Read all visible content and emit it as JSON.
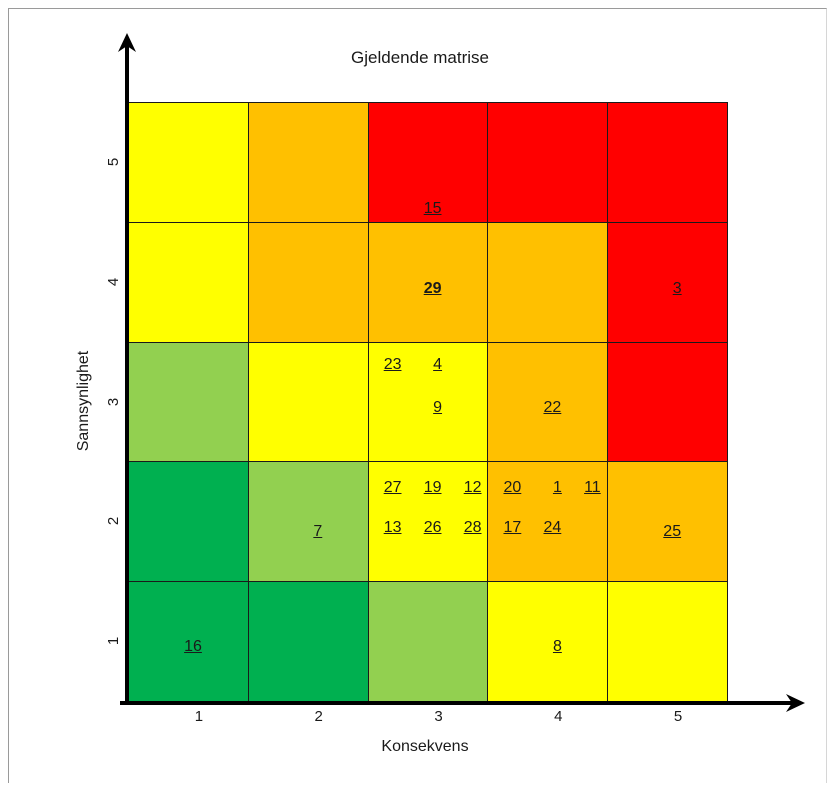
{
  "title": "Gjeldende matrise",
  "x_axis": {
    "label": "Konsekvens",
    "ticks": [
      "1",
      "2",
      "3",
      "4",
      "5"
    ]
  },
  "y_axis": {
    "label": "Sannsynlighet",
    "ticks": [
      "1",
      "2",
      "3",
      "4",
      "5"
    ]
  },
  "colors": {
    "dark_green": "#00b050",
    "light_green": "#92d050",
    "yellow": "#ffff00",
    "orange": "#ffc000",
    "red": "#ff0000"
  },
  "cells": [
    {
      "likelihood": 5,
      "consequence": 1,
      "color": "yellow"
    },
    {
      "likelihood": 5,
      "consequence": 2,
      "color": "orange"
    },
    {
      "likelihood": 5,
      "consequence": 3,
      "color": "red"
    },
    {
      "likelihood": 5,
      "consequence": 4,
      "color": "red"
    },
    {
      "likelihood": 5,
      "consequence": 5,
      "color": "red"
    },
    {
      "likelihood": 4,
      "consequence": 1,
      "color": "yellow"
    },
    {
      "likelihood": 4,
      "consequence": 2,
      "color": "orange"
    },
    {
      "likelihood": 4,
      "consequence": 3,
      "color": "orange"
    },
    {
      "likelihood": 4,
      "consequence": 4,
      "color": "orange"
    },
    {
      "likelihood": 4,
      "consequence": 5,
      "color": "red"
    },
    {
      "likelihood": 3,
      "consequence": 1,
      "color": "light_green"
    },
    {
      "likelihood": 3,
      "consequence": 2,
      "color": "yellow"
    },
    {
      "likelihood": 3,
      "consequence": 3,
      "color": "yellow"
    },
    {
      "likelihood": 3,
      "consequence": 4,
      "color": "orange"
    },
    {
      "likelihood": 3,
      "consequence": 5,
      "color": "red"
    },
    {
      "likelihood": 2,
      "consequence": 1,
      "color": "dark_green"
    },
    {
      "likelihood": 2,
      "consequence": 2,
      "color": "light_green"
    },
    {
      "likelihood": 2,
      "consequence": 3,
      "color": "yellow"
    },
    {
      "likelihood": 2,
      "consequence": 4,
      "color": "orange"
    },
    {
      "likelihood": 2,
      "consequence": 5,
      "color": "orange"
    },
    {
      "likelihood": 1,
      "consequence": 1,
      "color": "dark_green"
    },
    {
      "likelihood": 1,
      "consequence": 2,
      "color": "dark_green"
    },
    {
      "likelihood": 1,
      "consequence": 3,
      "color": "light_green"
    },
    {
      "likelihood": 1,
      "consequence": 4,
      "color": "yellow"
    },
    {
      "likelihood": 1,
      "consequence": 5,
      "color": "yellow"
    }
  ],
  "risks": [
    {
      "id": "15",
      "likelihood": 5,
      "consequence": 3,
      "bold": false
    },
    {
      "id": "29",
      "likelihood": 4,
      "consequence": 3,
      "bold": true
    },
    {
      "id": "3",
      "likelihood": 4,
      "consequence": 5,
      "bold": false
    },
    {
      "id": "23",
      "likelihood": 3,
      "consequence": 3,
      "bold": false
    },
    {
      "id": "4",
      "likelihood": 3,
      "consequence": 3,
      "bold": false
    },
    {
      "id": "9",
      "likelihood": 3,
      "consequence": 3,
      "bold": false
    },
    {
      "id": "22",
      "likelihood": 3,
      "consequence": 4,
      "bold": false
    },
    {
      "id": "7",
      "likelihood": 2,
      "consequence": 2,
      "bold": false
    },
    {
      "id": "27",
      "likelihood": 2,
      "consequence": 3,
      "bold": false
    },
    {
      "id": "19",
      "likelihood": 2,
      "consequence": 3,
      "bold": false
    },
    {
      "id": "12",
      "likelihood": 2,
      "consequence": 3,
      "bold": false
    },
    {
      "id": "13",
      "likelihood": 2,
      "consequence": 3,
      "bold": false
    },
    {
      "id": "26",
      "likelihood": 2,
      "consequence": 3,
      "bold": false
    },
    {
      "id": "28",
      "likelihood": 2,
      "consequence": 3,
      "bold": false
    },
    {
      "id": "20",
      "likelihood": 2,
      "consequence": 4,
      "bold": false
    },
    {
      "id": "1",
      "likelihood": 2,
      "consequence": 4,
      "bold": false
    },
    {
      "id": "11",
      "likelihood": 2,
      "consequence": 4,
      "bold": false
    },
    {
      "id": "17",
      "likelihood": 2,
      "consequence": 4,
      "bold": false
    },
    {
      "id": "24",
      "likelihood": 2,
      "consequence": 4,
      "bold": false
    },
    {
      "id": "25",
      "likelihood": 2,
      "consequence": 5,
      "bold": false
    },
    {
      "id": "16",
      "likelihood": 1,
      "consequence": 1,
      "bold": false
    },
    {
      "id": "8",
      "likelihood": 1,
      "consequence": 4,
      "bold": false
    }
  ]
}
